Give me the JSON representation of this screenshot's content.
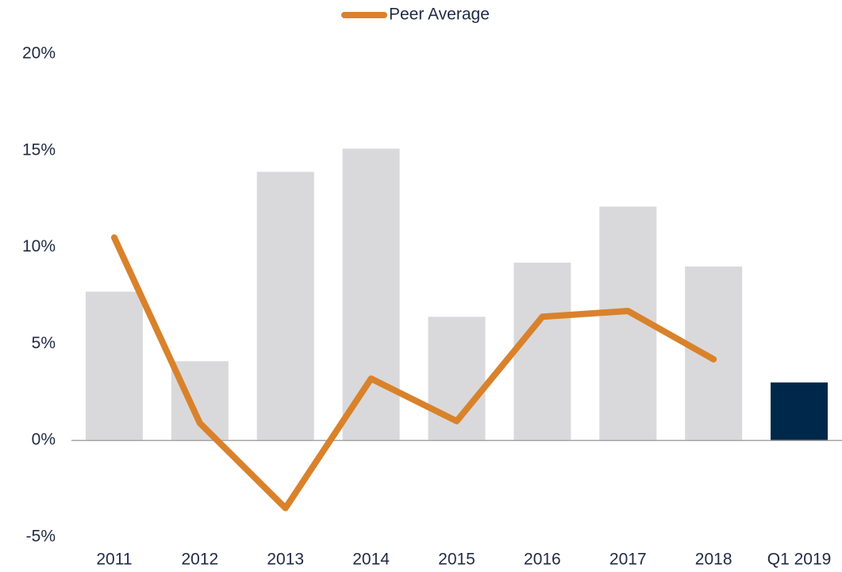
{
  "chart_data": {
    "type": "bar",
    "categories": [
      "2011",
      "2012",
      "2013",
      "2014",
      "2015",
      "2016",
      "2017",
      "2018",
      "Q1 2019"
    ],
    "series": [
      {
        "type": "bar",
        "values": [
          7.7,
          4.1,
          13.9,
          15.1,
          6.4,
          9.2,
          12.1,
          9.0,
          3.0
        ],
        "colors": [
          "#d9d9db",
          "#d9d9db",
          "#d9d9db",
          "#d9d9db",
          "#d9d9db",
          "#d9d9db",
          "#d9d9db",
          "#d9d9db",
          "#00284a"
        ]
      },
      {
        "type": "line",
        "name": "Peer Average",
        "color": "#d9822b",
        "values": [
          10.5,
          0.9,
          -3.5,
          3.2,
          1.0,
          6.4,
          6.7,
          4.2,
          null
        ]
      }
    ],
    "ylim": [
      -5,
      20
    ],
    "yticks": [
      {
        "value": -5,
        "label": "-5%"
      },
      {
        "value": 0,
        "label": "0%"
      },
      {
        "value": 5,
        "label": "5%"
      },
      {
        "value": 10,
        "label": "10%"
      },
      {
        "value": 15,
        "label": "15%"
      },
      {
        "value": 20,
        "label": "20%"
      }
    ],
    "grid": false,
    "legend": "top"
  }
}
